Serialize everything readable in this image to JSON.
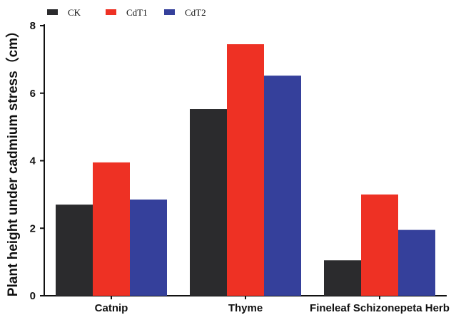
{
  "chart_data": {
    "type": "bar",
    "categories": [
      "Catnip",
      "Thyme",
      "Fineleaf Schizonepeta Herb"
    ],
    "series": [
      {
        "name": "CK",
        "color": "#2b2b2d",
        "values": [
          2.7,
          5.53,
          1.05
        ]
      },
      {
        "name": "CdT1",
        "color": "#ee3124",
        "values": [
          3.95,
          7.45,
          3.0
        ]
      },
      {
        "name": "CdT2",
        "color": "#35409b",
        "values": [
          2.85,
          6.52,
          1.95
        ]
      }
    ],
    "title": "",
    "xlabel": "",
    "ylabel": "Plant height under cadmium stress（cm）",
    "ylim": [
      0,
      8
    ],
    "yticks": [
      "0",
      "2",
      "4",
      "6",
      "8"
    ],
    "grid": false,
    "legend_position": "top-left"
  }
}
